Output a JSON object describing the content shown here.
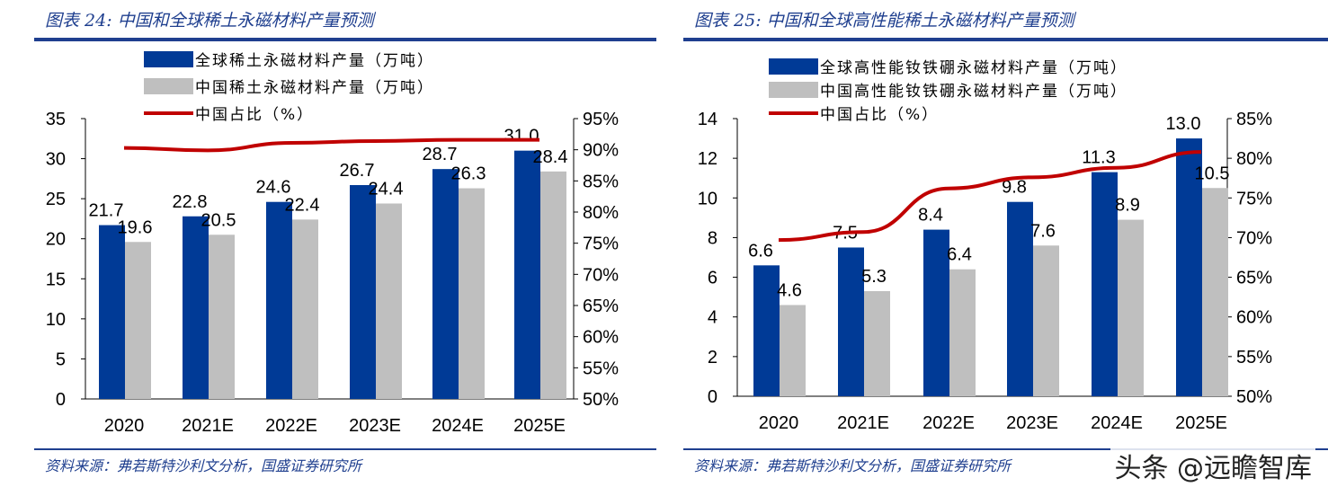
{
  "chart_data": [
    {
      "type": "bar",
      "title": "图表 24:  中国和全球稀土永磁材料产量预测",
      "source": "资料来源：弗若斯特沙利文分析，国盛证券研究所",
      "categories": [
        "2020",
        "2021E",
        "2022E",
        "2023E",
        "2024E",
        "2025E"
      ],
      "series": [
        {
          "name": "全球稀土永磁材料产量（万吨）",
          "type": "bar",
          "axis": "left",
          "color": "#003a96",
          "values": [
            21.7,
            22.8,
            24.6,
            26.7,
            28.7,
            31.0
          ]
        },
        {
          "name": "中国稀土永磁材料产量（万吨）",
          "type": "bar",
          "axis": "left",
          "color": "#bfbfbf",
          "values": [
            19.6,
            20.5,
            22.4,
            24.4,
            26.3,
            28.4
          ]
        },
        {
          "name": "中国占比（%）",
          "type": "line",
          "axis": "right",
          "color": "#c00000",
          "values": [
            90.3,
            89.9,
            91.1,
            91.4,
            91.6,
            91.6
          ]
        }
      ],
      "ylim": [
        0,
        35
      ],
      "yticks": [
        0,
        5,
        10,
        15,
        20,
        25,
        30,
        35
      ],
      "y2lim": [
        50,
        95
      ],
      "y2ticks": [
        "50%",
        "55%",
        "60%",
        "65%",
        "70%",
        "75%",
        "80%",
        "85%",
        "90%",
        "95%"
      ],
      "legend": "top",
      "grid": false
    },
    {
      "type": "bar",
      "title": "图表 25:  中国和全球高性能稀土永磁材料产量预测",
      "source": "资料来源：弗若斯特沙利文分析，国盛证券研究所",
      "categories": [
        "2020",
        "2021E",
        "2022E",
        "2023E",
        "2024E",
        "2025E"
      ],
      "series": [
        {
          "name": "全球高性能钕铁硼永磁材料产量（万吨）",
          "type": "bar",
          "axis": "left",
          "color": "#003a96",
          "values": [
            6.6,
            7.5,
            8.4,
            9.8,
            11.3,
            13.0
          ]
        },
        {
          "name": "中国高性能钕铁硼永磁材料产量（万吨）",
          "type": "bar",
          "axis": "left",
          "color": "#bfbfbf",
          "values": [
            4.6,
            5.3,
            6.4,
            7.6,
            8.9,
            10.5
          ]
        },
        {
          "name": "中国占比（%）",
          "type": "line",
          "axis": "right",
          "color": "#c00000",
          "values": [
            69.7,
            70.7,
            76.2,
            77.6,
            78.8,
            80.8
          ]
        }
      ],
      "ylim": [
        0,
        14
      ],
      "yticks": [
        0,
        2,
        4,
        6,
        8,
        10,
        12,
        14
      ],
      "y2lim": [
        50,
        85
      ],
      "y2ticks": [
        "50%",
        "55%",
        "60%",
        "65%",
        "70%",
        "75%",
        "80%",
        "85%"
      ],
      "legend": "top",
      "grid": false
    }
  ],
  "watermark": "头条 @远瞻智库"
}
